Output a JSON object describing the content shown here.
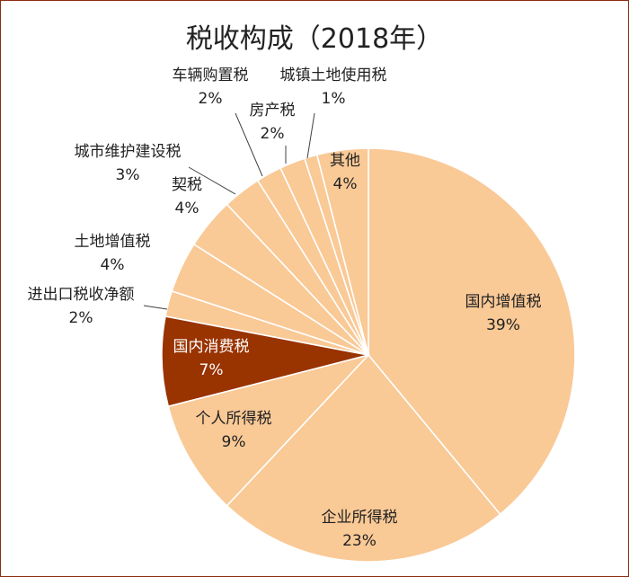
{
  "chart_data": {
    "type": "pie",
    "title": "税收构成（2018年）",
    "colors": {
      "slice": "#f9c996",
      "highlight": "#993300",
      "stroke": "#ffffff",
      "leader": "#404040",
      "frame": "#8b2c16"
    },
    "slices": [
      {
        "name": "国内增值税",
        "label": "39%",
        "value": 39
      },
      {
        "name": "企业所得税",
        "label": "23%",
        "value": 23
      },
      {
        "name": "个人所得税",
        "label": "9%",
        "value": 9
      },
      {
        "name": "国内消费税",
        "label": "7%",
        "value": 7,
        "highlight": true
      },
      {
        "name": "进出口税收净额",
        "label": "2%",
        "value": 2
      },
      {
        "name": "土地增值税",
        "label": "4%",
        "value": 4
      },
      {
        "name": "契税",
        "label": "4%",
        "value": 4
      },
      {
        "name": "城市维护建设税",
        "label": "3%",
        "value": 3
      },
      {
        "name": "车辆购置税",
        "label": "2%",
        "value": 2
      },
      {
        "name": "房产税",
        "label": "2%",
        "value": 2
      },
      {
        "name": "城镇土地使用税",
        "label": "1%",
        "value": 1
      },
      {
        "name": "其他",
        "label": "4%",
        "value": 4
      }
    ]
  }
}
